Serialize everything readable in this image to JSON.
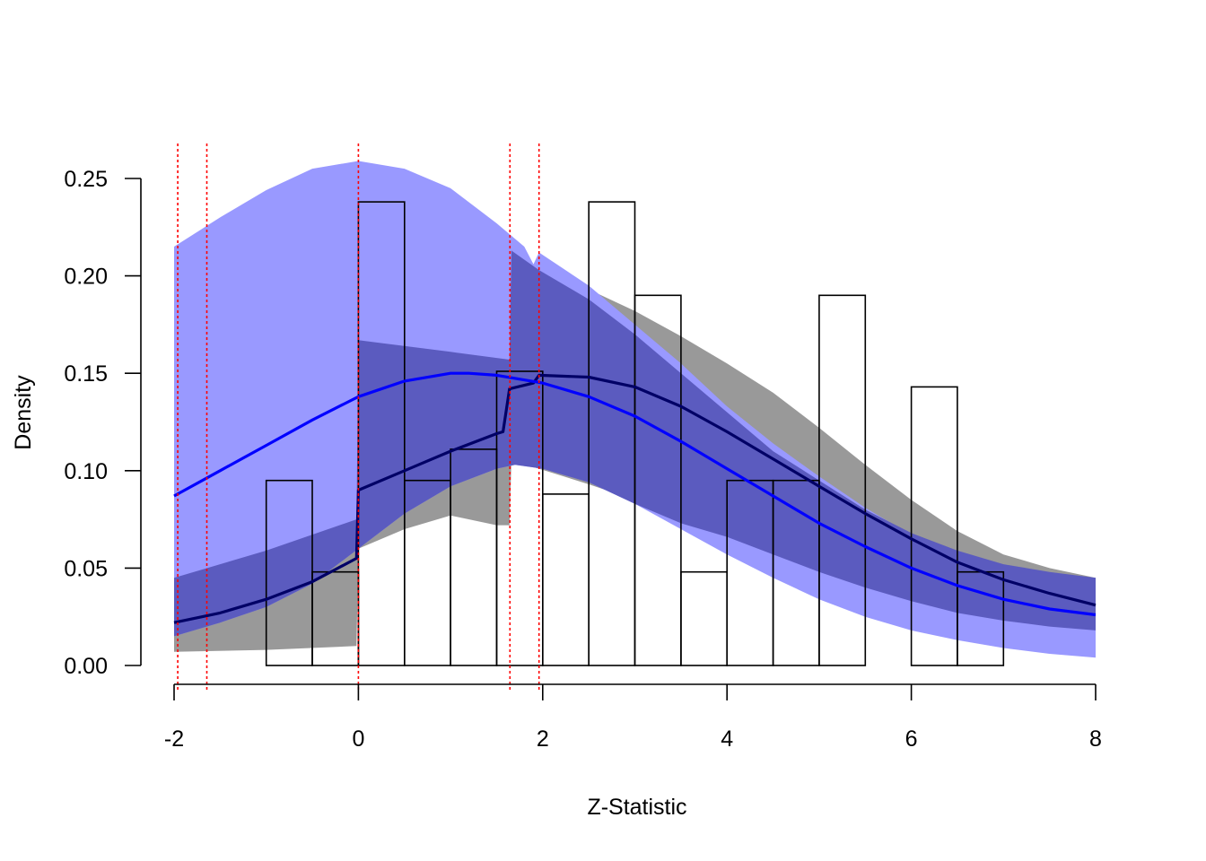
{
  "chart_data": {
    "type": "area",
    "xlabel": "Z-Statistic",
    "ylabel": "Density",
    "xlim": [
      -2,
      8
    ],
    "ylim": [
      0,
      0.25
    ],
    "x_ticks": [
      {
        "value": -2,
        "label": "-2"
      },
      {
        "value": 0,
        "label": "0"
      },
      {
        "value": 2,
        "label": "2"
      },
      {
        "value": 4,
        "label": "4"
      },
      {
        "value": 6,
        "label": "6"
      },
      {
        "value": 8,
        "label": "8"
      }
    ],
    "y_ticks": [
      {
        "value": 0,
        "label": "0.00"
      },
      {
        "value": 0.05,
        "label": "0.05"
      },
      {
        "value": 0.1,
        "label": "0.10"
      },
      {
        "value": 0.15,
        "label": "0.15"
      },
      {
        "value": 0.2,
        "label": "0.20"
      },
      {
        "value": 0.25,
        "label": "0.25"
      }
    ],
    "grid": false,
    "colors": {
      "histogram_stroke": "#000000",
      "gray_band": "#999999",
      "light_blue_band": "#9999ff",
      "dark_blue_band": "#5b5bbf",
      "navy_line": "#000066",
      "blue_line": "#0000ff",
      "reference_lines": "#ff0000"
    },
    "histogram": {
      "bin_width": 0.5,
      "bars": [
        {
          "x0": -1.0,
          "density": 0.095
        },
        {
          "x0": -0.5,
          "density": 0.048
        },
        {
          "x0": 0.0,
          "density": 0.238
        },
        {
          "x0": 0.5,
          "density": 0.095
        },
        {
          "x0": 1.0,
          "density": 0.111
        },
        {
          "x0": 1.5,
          "density": 0.151
        },
        {
          "x0": 2.0,
          "density": 0.088
        },
        {
          "x0": 2.5,
          "density": 0.238
        },
        {
          "x0": 3.0,
          "density": 0.19
        },
        {
          "x0": 3.5,
          "density": 0.048
        },
        {
          "x0": 4.0,
          "density": 0.095
        },
        {
          "x0": 4.5,
          "density": 0.095
        },
        {
          "x0": 5.0,
          "density": 0.19
        },
        {
          "x0": 5.5,
          "density": 0.0
        },
        {
          "x0": 6.0,
          "density": 0.143
        },
        {
          "x0": 6.5,
          "density": 0.048
        },
        {
          "x0": 7.0,
          "density": 0.0
        },
        {
          "x0": 7.5,
          "density": 0.0
        }
      ]
    },
    "reference_lines_x": [
      -1.96,
      -1.645,
      0,
      1.645,
      1.96
    ],
    "bands": [
      {
        "id": "gray",
        "upper": [
          [
            -2,
            0.045
          ],
          [
            -1,
            0.059
          ],
          [
            -0.02,
            0.075
          ],
          [
            0.0,
            0.167
          ],
          [
            1.0,
            0.161
          ],
          [
            1.64,
            0.157
          ],
          [
            1.66,
            0.213
          ],
          [
            1.96,
            0.203
          ],
          [
            2.5,
            0.193
          ],
          [
            3.0,
            0.182
          ],
          [
            3.5,
            0.169
          ],
          [
            4.0,
            0.155
          ],
          [
            4.5,
            0.14
          ],
          [
            5.0,
            0.122
          ],
          [
            5.5,
            0.103
          ],
          [
            6.0,
            0.085
          ],
          [
            6.5,
            0.069
          ],
          [
            7.0,
            0.057
          ],
          [
            7.5,
            0.05
          ],
          [
            8.0,
            0.045
          ]
        ],
        "lower": [
          [
            -2,
            0.007
          ],
          [
            -1,
            0.008
          ],
          [
            -0.02,
            0.01
          ],
          [
            0.0,
            0.06
          ],
          [
            0.5,
            0.07
          ],
          [
            1.0,
            0.077
          ],
          [
            1.5,
            0.072
          ],
          [
            1.64,
            0.072
          ],
          [
            1.66,
            0.105
          ],
          [
            1.96,
            0.101
          ],
          [
            2.5,
            0.093
          ],
          [
            3.0,
            0.085
          ],
          [
            3.5,
            0.075
          ],
          [
            4.0,
            0.066
          ],
          [
            4.5,
            0.057
          ],
          [
            5.0,
            0.048
          ],
          [
            5.5,
            0.04
          ],
          [
            6.0,
            0.033
          ],
          [
            6.5,
            0.027
          ],
          [
            7.0,
            0.023
          ],
          [
            7.5,
            0.02
          ],
          [
            8.0,
            0.018
          ]
        ]
      },
      {
        "id": "light_blue",
        "upper": [
          [
            -2,
            0.215
          ],
          [
            -1.5,
            0.23
          ],
          [
            -1,
            0.244
          ],
          [
            -0.5,
            0.255
          ],
          [
            0.0,
            0.259
          ],
          [
            0.5,
            0.255
          ],
          [
            1.0,
            0.245
          ],
          [
            1.5,
            0.227
          ],
          [
            1.8,
            0.215
          ],
          [
            1.9,
            0.206
          ],
          [
            1.96,
            0.212
          ],
          [
            2.5,
            0.195
          ],
          [
            3.0,
            0.175
          ],
          [
            3.5,
            0.155
          ],
          [
            4.0,
            0.133
          ],
          [
            4.5,
            0.114
          ],
          [
            5.0,
            0.097
          ],
          [
            5.5,
            0.081
          ],
          [
            6.0,
            0.067
          ],
          [
            6.5,
            0.057
          ],
          [
            7.0,
            0.05
          ],
          [
            7.5,
            0.047
          ],
          [
            8.0,
            0.045
          ]
        ],
        "lower": [
          [
            -2,
            0.015
          ],
          [
            -1.5,
            0.022
          ],
          [
            -1,
            0.03
          ],
          [
            -0.5,
            0.042
          ],
          [
            0.0,
            0.06
          ],
          [
            0.5,
            0.078
          ],
          [
            1.0,
            0.092
          ],
          [
            1.5,
            0.101
          ],
          [
            1.7,
            0.103
          ],
          [
            2.0,
            0.101
          ],
          [
            2.5,
            0.094
          ],
          [
            3.0,
            0.083
          ],
          [
            3.5,
            0.07
          ],
          [
            4.0,
            0.057
          ],
          [
            4.5,
            0.045
          ],
          [
            5.0,
            0.034
          ],
          [
            5.5,
            0.025
          ],
          [
            6.0,
            0.018
          ],
          [
            6.5,
            0.013
          ],
          [
            7.0,
            0.009
          ],
          [
            7.5,
            0.006
          ],
          [
            8.0,
            0.004
          ]
        ]
      },
      {
        "id": "dark_blue",
        "upper": [
          [
            -2,
            0.045
          ],
          [
            -1,
            0.059
          ],
          [
            -0.02,
            0.075
          ],
          [
            0.0,
            0.167
          ],
          [
            1.0,
            0.161
          ],
          [
            1.64,
            0.157
          ],
          [
            1.66,
            0.213
          ],
          [
            1.96,
            0.203
          ],
          [
            2.5,
            0.188
          ],
          [
            3.0,
            0.17
          ],
          [
            3.5,
            0.15
          ],
          [
            4.0,
            0.13
          ],
          [
            4.5,
            0.11
          ],
          [
            5.0,
            0.095
          ],
          [
            5.5,
            0.08
          ],
          [
            6.0,
            0.068
          ],
          [
            6.5,
            0.059
          ],
          [
            7.0,
            0.052
          ],
          [
            7.5,
            0.048
          ],
          [
            8.0,
            0.045
          ]
        ],
        "lower": [
          [
            -2,
            0.015
          ],
          [
            -1.5,
            0.022
          ],
          [
            -1,
            0.03
          ],
          [
            -0.5,
            0.042
          ],
          [
            0.0,
            0.06
          ],
          [
            0.5,
            0.078
          ],
          [
            1.0,
            0.092
          ],
          [
            1.5,
            0.101
          ],
          [
            1.7,
            0.103
          ],
          [
            2.0,
            0.101
          ],
          [
            2.5,
            0.094
          ],
          [
            3.0,
            0.083
          ],
          [
            3.5,
            0.073
          ],
          [
            4.0,
            0.066
          ],
          [
            4.5,
            0.057
          ],
          [
            5.0,
            0.048
          ],
          [
            5.5,
            0.04
          ],
          [
            6.0,
            0.033
          ],
          [
            6.5,
            0.027
          ],
          [
            7.0,
            0.023
          ],
          [
            7.5,
            0.02
          ],
          [
            8.0,
            0.018
          ]
        ]
      }
    ],
    "lines": [
      {
        "id": "navy",
        "points": [
          [
            -2,
            0.022
          ],
          [
            -1.5,
            0.027
          ],
          [
            -1,
            0.034
          ],
          [
            -0.5,
            0.043
          ],
          [
            -0.02,
            0.055
          ],
          [
            0.0,
            0.09
          ],
          [
            0.5,
            0.1
          ],
          [
            1.0,
            0.11
          ],
          [
            1.5,
            0.119
          ],
          [
            1.57,
            0.12
          ],
          [
            1.64,
            0.142
          ],
          [
            1.9,
            0.145
          ],
          [
            1.96,
            0.149
          ],
          [
            2.5,
            0.148
          ],
          [
            3.0,
            0.143
          ],
          [
            3.5,
            0.133
          ],
          [
            4.0,
            0.12
          ],
          [
            4.5,
            0.106
          ],
          [
            5.0,
            0.092
          ],
          [
            5.5,
            0.078
          ],
          [
            6.0,
            0.065
          ],
          [
            6.5,
            0.053
          ],
          [
            7.0,
            0.044
          ],
          [
            7.5,
            0.037
          ],
          [
            8.0,
            0.031
          ]
        ]
      },
      {
        "id": "blue",
        "points": [
          [
            -2,
            0.087
          ],
          [
            -1.5,
            0.1
          ],
          [
            -1,
            0.113
          ],
          [
            -0.5,
            0.126
          ],
          [
            0.0,
            0.138
          ],
          [
            0.5,
            0.146
          ],
          [
            1.0,
            0.15
          ],
          [
            1.2,
            0.15
          ],
          [
            1.5,
            0.149
          ],
          [
            2.0,
            0.145
          ],
          [
            2.5,
            0.138
          ],
          [
            3.0,
            0.128
          ],
          [
            3.5,
            0.115
          ],
          [
            4.0,
            0.101
          ],
          [
            4.5,
            0.087
          ],
          [
            5.0,
            0.073
          ],
          [
            5.5,
            0.061
          ],
          [
            6.0,
            0.05
          ],
          [
            6.5,
            0.041
          ],
          [
            7.0,
            0.034
          ],
          [
            7.5,
            0.029
          ],
          [
            8.0,
            0.026
          ]
        ]
      }
    ]
  }
}
